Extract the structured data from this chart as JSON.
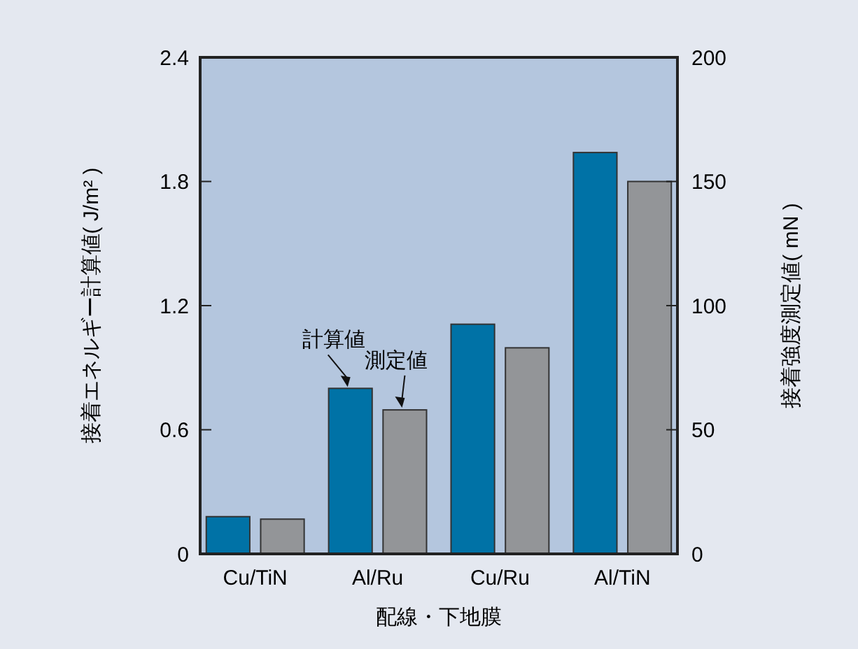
{
  "chart_data": {
    "type": "bar",
    "xlabel": "配線・下地膜",
    "ylabel": "接着エネルギー計算値( J/m² )",
    "y2label": "接着強度測定値( mN )",
    "categories": [
      "Cu/TiN",
      "Al/Ru",
      "Cu/Ru",
      "Al/TiN"
    ],
    "series": [
      {
        "color": "#0072a6",
        "values": [
          0.18,
          0.8,
          1.11,
          1.94
        ]
      },
      {
        "color": "#939598",
        "axis": "y2",
        "values": [
          14,
          58,
          83,
          150
        ]
      }
    ],
    "ylim": [
      0,
      2.4
    ],
    "yticks": [
      0,
      0.6,
      1.2,
      1.8,
      2.4
    ],
    "y2lim": [
      0,
      200
    ],
    "y2ticks": [
      0,
      50,
      100,
      150,
      200
    ],
    "annotations": [
      {
        "text": "計算値",
        "x": "Al/Ru",
        "y": 0.8
      },
      {
        "text": "測定値",
        "x": "Al/Ru",
        "y": 0.7
      }
    ],
    "grid": false
  }
}
